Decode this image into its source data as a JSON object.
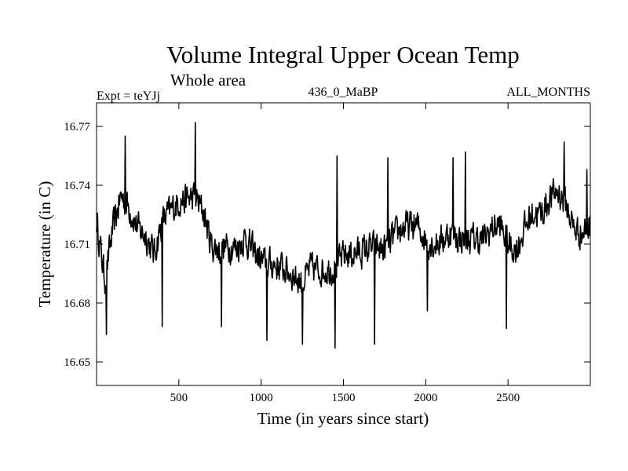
{
  "chart_data": {
    "type": "line",
    "title": "Volume Integral Upper Ocean Temp",
    "subtitle": "Whole area",
    "experiment_label": "Expt = teYJj",
    "run_label": "436_0_MaBP",
    "period_label": "ALL_MONTHS",
    "xlabel": "Time (in years since start)",
    "ylabel": "Temperature (in C)",
    "xlim": [
      0,
      3000
    ],
    "ylim": [
      16.638,
      16.782
    ],
    "x_ticks": [
      500,
      1000,
      1500,
      2000,
      2500
    ],
    "x_tick_labels": [
      "500",
      "1000",
      "1500",
      "2000",
      "2500"
    ],
    "y_ticks": [
      16.65,
      16.68,
      16.71,
      16.74,
      16.77
    ],
    "y_tick_labels": [
      "16.65",
      "16.68",
      "16.71",
      "16.74",
      "16.77"
    ],
    "grid": false,
    "legend": "none",
    "series": [
      {
        "name": "Volume Integral Upper Ocean Temp",
        "color": "#000000",
        "segment_means": {
          "x": [
            0,
            50,
            100,
            150,
            200,
            250,
            300,
            350,
            400,
            450,
            500,
            550,
            600,
            650,
            700,
            750,
            800,
            850,
            900,
            950,
            1000,
            1050,
            1100,
            1150,
            1200,
            1250,
            1300,
            1350,
            1400,
            1450,
            1500,
            1550,
            1600,
            1650,
            1700,
            1750,
            1800,
            1850,
            1900,
            1950,
            2000,
            2050,
            2100,
            2150,
            2200,
            2250,
            2300,
            2350,
            2400,
            2450,
            2500,
            2550,
            2600,
            2650,
            2700,
            2750,
            2800,
            2850,
            2900,
            2950,
            3000
          ],
          "y": [
            16.722,
            16.692,
            16.718,
            16.735,
            16.728,
            16.718,
            16.714,
            16.705,
            16.722,
            16.727,
            16.732,
            16.733,
            16.734,
            16.726,
            16.709,
            16.707,
            16.709,
            16.708,
            16.713,
            16.707,
            16.701,
            16.7,
            16.699,
            16.697,
            16.694,
            16.69,
            16.698,
            16.697,
            16.697,
            16.698,
            16.704,
            16.705,
            16.706,
            16.708,
            16.708,
            16.707,
            16.713,
            16.718,
            16.719,
            16.719,
            16.712,
            16.71,
            16.712,
            16.716,
            16.713,
            16.712,
            16.713,
            16.712,
            16.718,
            16.72,
            16.71,
            16.707,
            16.718,
            16.726,
            16.725,
            16.733,
            16.737,
            16.731,
            16.718,
            16.715,
            16.72
          ]
        },
        "noise_amplitude": 0.011,
        "extremes": [
          {
            "x": 60,
            "y": 16.664
          },
          {
            "x": 175,
            "y": 16.765
          },
          {
            "x": 400,
            "y": 16.668
          },
          {
            "x": 600,
            "y": 16.772
          },
          {
            "x": 760,
            "y": 16.668
          },
          {
            "x": 1035,
            "y": 16.661
          },
          {
            "x": 1250,
            "y": 16.659
          },
          {
            "x": 1450,
            "y": 16.657
          },
          {
            "x": 1460,
            "y": 16.755
          },
          {
            "x": 1690,
            "y": 16.659
          },
          {
            "x": 1770,
            "y": 16.754
          },
          {
            "x": 2010,
            "y": 16.676
          },
          {
            "x": 2165,
            "y": 16.754
          },
          {
            "x": 2240,
            "y": 16.757
          },
          {
            "x": 2490,
            "y": 16.667
          },
          {
            "x": 2840,
            "y": 16.762
          },
          {
            "x": 2980,
            "y": 16.748
          }
        ]
      }
    ]
  }
}
